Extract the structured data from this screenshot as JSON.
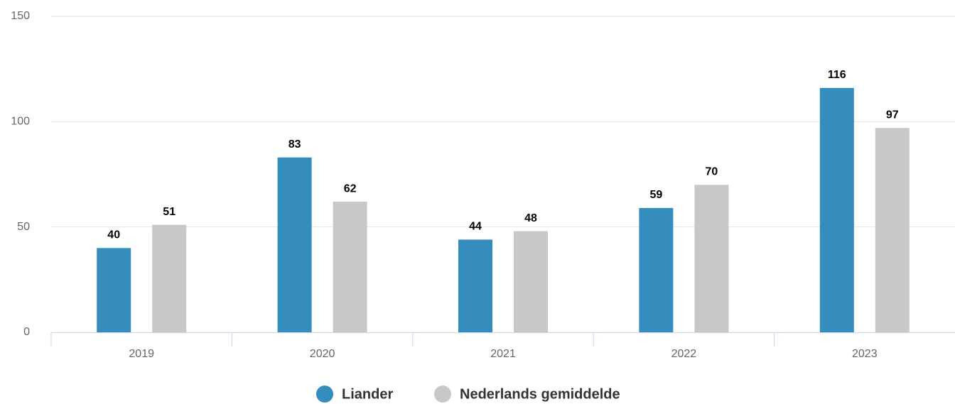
{
  "chart_data": {
    "type": "bar",
    "categories": [
      "2019",
      "2020",
      "2021",
      "2022",
      "2023"
    ],
    "series": [
      {
        "name": "Liander",
        "color": "#358dbd",
        "values": [
          40,
          83,
          44,
          59,
          116
        ]
      },
      {
        "name": "Nederlands gemiddelde",
        "color": "#c8c8c8",
        "values": [
          51,
          62,
          48,
          70,
          97
        ]
      }
    ],
    "ylim": [
      0,
      150
    ],
    "yticks": [
      0,
      50,
      100,
      150
    ],
    "grid": true,
    "legend": "bottom"
  }
}
